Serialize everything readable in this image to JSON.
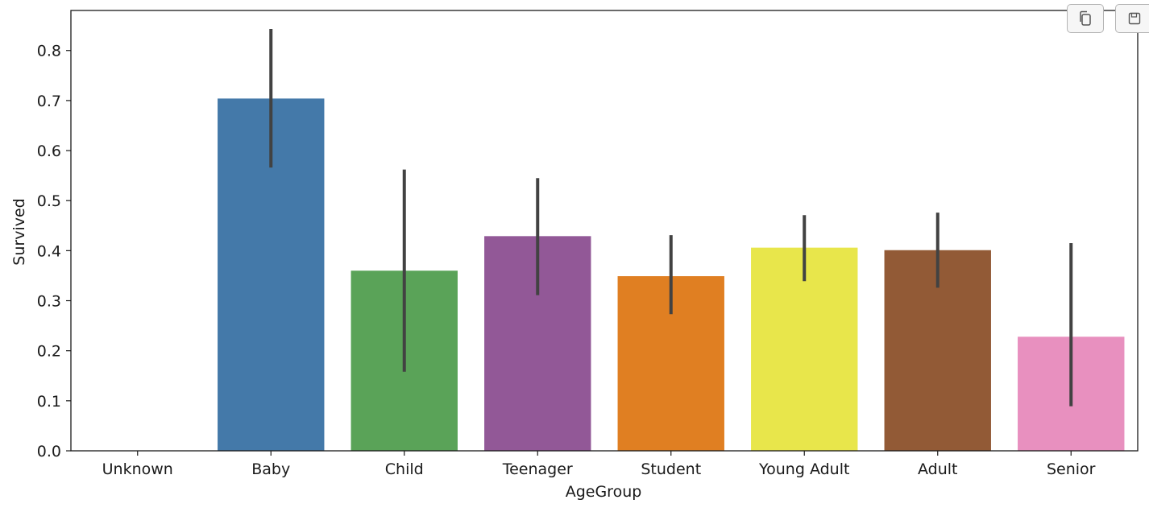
{
  "toolbar": {
    "copy_icon": "copy-icon",
    "save_icon": "save-icon"
  },
  "chart_data": {
    "type": "bar",
    "xlabel": "AgeGroup",
    "ylabel": "Survived",
    "ylim": [
      0,
      0.88
    ],
    "yticks": [
      0.0,
      0.1,
      0.2,
      0.3,
      0.4,
      0.5,
      0.6,
      0.7,
      0.8
    ],
    "ytick_labels": [
      "0.0",
      "0.1",
      "0.2",
      "0.3",
      "0.4",
      "0.5",
      "0.6",
      "0.7",
      "0.8"
    ],
    "grid": false,
    "categories": [
      "Unknown",
      "Baby",
      "Child",
      "Teenager",
      "Student",
      "Young Adult",
      "Adult",
      "Senior"
    ],
    "values": [
      0.0,
      0.704,
      0.36,
      0.429,
      0.349,
      0.406,
      0.401,
      0.228
    ],
    "error_low": [
      null,
      0.566,
      0.158,
      0.311,
      0.273,
      0.339,
      0.326,
      0.089
    ],
    "error_high": [
      null,
      0.843,
      0.562,
      0.545,
      0.431,
      0.471,
      0.476,
      0.415
    ],
    "colors": [
      "#e41a1c",
      "#4479a9",
      "#5aa358",
      "#925897",
      "#e07f22",
      "#e8e64b",
      "#925a36",
      "#e890bf"
    ],
    "error_color": "#424242"
  }
}
